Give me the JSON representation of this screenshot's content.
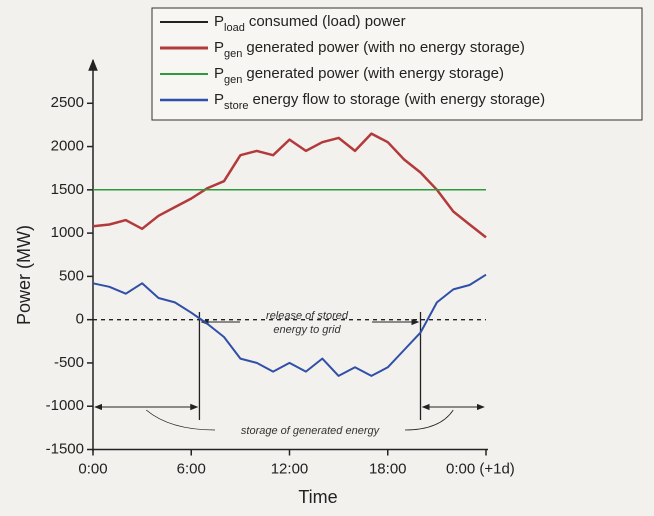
{
  "chart_data": {
    "type": "line",
    "xlabel": "Time",
    "ylabel": "Power (MW)",
    "xlim": [
      0,
      24
    ],
    "ylim": [
      -1500,
      3000
    ],
    "xticks": [
      {
        "value": 0,
        "label": "0:00"
      },
      {
        "value": 6,
        "label": "6:00"
      },
      {
        "value": 12,
        "label": "12:00"
      },
      {
        "value": 18,
        "label": "18:00"
      },
      {
        "value": 24,
        "label": "0:00 (+1d)"
      }
    ],
    "yticks": [
      -1500,
      -1000,
      -500,
      0,
      500,
      1000,
      1500,
      2000,
      2500
    ],
    "x": [
      0,
      1,
      2,
      3,
      4,
      5,
      6,
      7,
      8,
      9,
      10,
      11,
      12,
      13,
      14,
      15,
      16,
      17,
      18,
      19,
      20,
      21,
      22,
      23,
      24
    ],
    "series": [
      {
        "symbol": "P",
        "symbol_sub": "load",
        "name": "consumed (load) power",
        "color": "#222222",
        "width": 1.5,
        "values": [
          1500,
          1500,
          1500,
          1500,
          1500,
          1500,
          1500,
          1500,
          1500,
          1500,
          1500,
          1500,
          1500,
          1500,
          1500,
          1500,
          1500,
          1500,
          1500,
          1500,
          1500,
          1500,
          1500,
          1500,
          1500
        ]
      },
      {
        "symbol": "P",
        "symbol_sub": "gen",
        "name": "generated power (with no energy storage)",
        "color": "#b33a3a",
        "width": 2.5,
        "values": [
          1080,
          1100,
          1150,
          1050,
          1200,
          1300,
          1400,
          1520,
          1600,
          1900,
          1950,
          1900,
          2080,
          1950,
          2050,
          2100,
          1950,
          2150,
          2050,
          1850,
          1700,
          1500,
          1250,
          1100,
          950
        ]
      },
      {
        "symbol": "P",
        "symbol_sub": "gen",
        "name": "generated power (with energy storage)",
        "color": "#2e9a3e",
        "width": 1.5,
        "values": [
          1500,
          1500,
          1500,
          1500,
          1500,
          1500,
          1500,
          1500,
          1500,
          1500,
          1500,
          1500,
          1500,
          1500,
          1500,
          1500,
          1500,
          1500,
          1500,
          1500,
          1500,
          1500,
          1500,
          1500,
          1500
        ]
      },
      {
        "symbol": "P",
        "symbol_sub": "store",
        "name": "energy flow to storage (with energy storage)",
        "color": "#2f4fa8",
        "width": 2,
        "values": [
          420,
          380,
          300,
          420,
          250,
          200,
          80,
          -50,
          -200,
          -450,
          -500,
          -600,
          -500,
          -600,
          -450,
          -650,
          -550,
          -650,
          -550,
          -350,
          -150,
          200,
          350,
          400,
          520
        ]
      }
    ],
    "zero_line": 0,
    "vlines": [
      6.5,
      20
    ],
    "annotations": [
      "release of stored",
      "energy to grid",
      "storage of generated energy"
    ]
  }
}
